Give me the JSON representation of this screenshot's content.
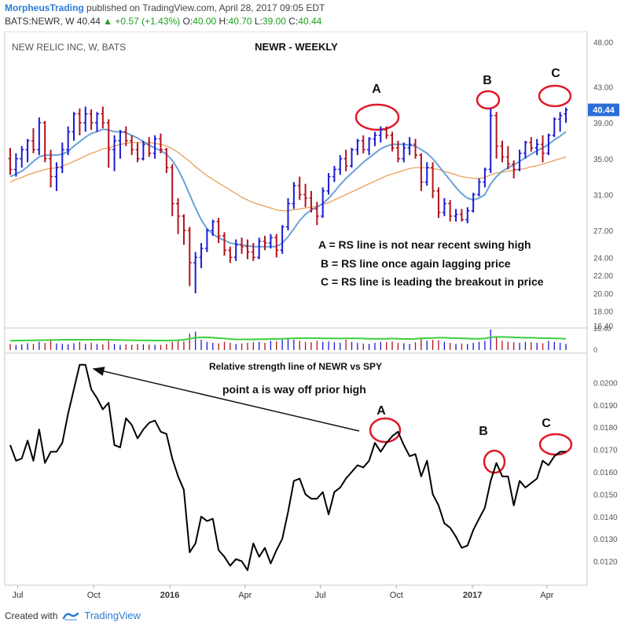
{
  "header": {
    "author": "MorpheusTrading",
    "published_text": "published on TradingView.com, April 28, 2017 09:05 EDT",
    "symbol": "BATS:NEWR, W",
    "last": "40.44",
    "change": "+0.57 (+1.43%)",
    "o_label": "O:",
    "o_value": "40.00",
    "h_label": "H:",
    "h_value": "40.70",
    "l_label": "L:",
    "l_value": "39.00",
    "c_label": "C:",
    "c_value": "40.44"
  },
  "footer": {
    "created_with": "Created with",
    "brand": "TradingView"
  },
  "colors": {
    "up_bar": "#1a1ad6",
    "down_bar": "#b3121d",
    "ma_fast": "#6aa2d8",
    "ma_slow": "#e89a4a",
    "volume_ma": "#3ccf3c",
    "rs_line": "#000000",
    "annotation_circle": "#e0192a",
    "last_price_bg": "#2b6fd6"
  },
  "chart_data": [
    {
      "type": "line",
      "title": "NEWR - WEEKLY",
      "subtitle": "NEW RELIC INC, W, BATS",
      "ylim": [
        16.4,
        49.0
      ],
      "y_ticks": [
        "48.00",
        "43.00",
        "39.00",
        "35.00",
        "31.00",
        "27.00",
        "24.00",
        "22.00",
        "20.00",
        "18.00",
        "16.40"
      ],
      "last_price_label": "40.44",
      "x_ticks": [
        "Jul",
        "Oct",
        "2016",
        "Apr",
        "Jul",
        "Oct",
        "2017",
        "Apr"
      ],
      "x": [
        "2015-06-22",
        "2015-06-29",
        "2015-07-06",
        "2015-07-13",
        "2015-07-20",
        "2015-07-27",
        "2015-08-03",
        "2015-08-10",
        "2015-08-17",
        "2015-08-24",
        "2015-08-31",
        "2015-09-07",
        "2015-09-14",
        "2015-09-21",
        "2015-09-28",
        "2015-10-05",
        "2015-10-12",
        "2015-10-19",
        "2015-10-26",
        "2015-11-02",
        "2015-11-09",
        "2015-11-16",
        "2015-11-23",
        "2015-11-30",
        "2015-12-07",
        "2015-12-14",
        "2015-12-21",
        "2015-12-28",
        "2016-01-04",
        "2016-01-11",
        "2016-01-18",
        "2016-01-25",
        "2016-02-01",
        "2016-02-08",
        "2016-02-15",
        "2016-02-22",
        "2016-02-29",
        "2016-03-07",
        "2016-03-14",
        "2016-03-21",
        "2016-03-28",
        "2016-04-04",
        "2016-04-11",
        "2016-04-18",
        "2016-04-25",
        "2016-05-02",
        "2016-05-09",
        "2016-05-16",
        "2016-05-23",
        "2016-05-30",
        "2016-06-06",
        "2016-06-13",
        "2016-06-20",
        "2016-06-27",
        "2016-07-04",
        "2016-07-11",
        "2016-07-18",
        "2016-07-25",
        "2016-08-01",
        "2016-08-08",
        "2016-08-15",
        "2016-08-22",
        "2016-08-29",
        "2016-09-05",
        "2016-09-12",
        "2016-09-19",
        "2016-09-26",
        "2016-10-03",
        "2016-10-10",
        "2016-10-17",
        "2016-10-24",
        "2016-10-31",
        "2016-11-07",
        "2016-11-14",
        "2016-11-21",
        "2016-11-28",
        "2016-12-05",
        "2016-12-12",
        "2016-12-19",
        "2016-12-26",
        "2017-01-02",
        "2017-01-09",
        "2017-01-16",
        "2017-01-23",
        "2017-01-30",
        "2017-02-06",
        "2017-02-13",
        "2017-02-20",
        "2017-02-27",
        "2017-03-06",
        "2017-03-13",
        "2017-03-20",
        "2017-03-27",
        "2017-04-03",
        "2017-04-10",
        "2017-04-17",
        "2017-04-24"
      ],
      "ohlc": [
        [
          35.0,
          36.2,
          33.2,
          33.8
        ],
        [
          33.8,
          35.6,
          33.0,
          35.0
        ],
        [
          35.0,
          36.4,
          34.0,
          36.0
        ],
        [
          36.0,
          37.2,
          34.6,
          37.0
        ],
        [
          37.0,
          38.4,
          35.6,
          36.0
        ],
        [
          36.0,
          39.6,
          35.4,
          39.0
        ],
        [
          39.0,
          39.2,
          34.6,
          35.0
        ],
        [
          35.0,
          36.0,
          31.8,
          33.0
        ],
        [
          33.0,
          34.6,
          31.4,
          34.0
        ],
        [
          34.0,
          36.8,
          33.4,
          36.0
        ],
        [
          36.0,
          38.6,
          35.4,
          38.0
        ],
        [
          38.0,
          40.2,
          37.0,
          40.0
        ],
        [
          40.0,
          40.6,
          37.6,
          39.0
        ],
        [
          39.0,
          40.8,
          38.0,
          40.0
        ],
        [
          40.0,
          40.5,
          38.2,
          39.0
        ],
        [
          39.0,
          40.2,
          38.0,
          40.0
        ],
        [
          40.0,
          40.8,
          38.4,
          39.0
        ],
        [
          39.0,
          39.4,
          34.0,
          36.0
        ],
        [
          36.0,
          37.6,
          33.6,
          37.0
        ],
        [
          37.0,
          38.2,
          35.0,
          38.0
        ],
        [
          38.0,
          38.6,
          36.4,
          37.0
        ],
        [
          37.0,
          37.6,
          35.4,
          36.0
        ],
        [
          36.0,
          36.8,
          34.6,
          35.0
        ],
        [
          35.0,
          37.0,
          34.8,
          36.6
        ],
        [
          36.6,
          37.4,
          35.2,
          35.6
        ],
        [
          35.6,
          37.6,
          35.0,
          37.2
        ],
        [
          37.2,
          37.8,
          35.6,
          36.0
        ],
        [
          36.0,
          36.2,
          33.4,
          34.0
        ],
        [
          34.0,
          34.4,
          28.6,
          30.0
        ],
        [
          30.0,
          30.6,
          26.6,
          28.6
        ],
        [
          28.6,
          28.8,
          25.4,
          27.0
        ],
        [
          27.0,
          27.4,
          20.8,
          23.4
        ],
        [
          23.4,
          24.6,
          20.0,
          24.0
        ],
        [
          24.0,
          25.6,
          22.8,
          25.0
        ],
        [
          25.0,
          27.2,
          24.6,
          27.0
        ],
        [
          27.0,
          28.2,
          26.4,
          28.0
        ],
        [
          28.0,
          28.4,
          25.6,
          26.4
        ],
        [
          26.4,
          26.8,
          24.2,
          24.8
        ],
        [
          24.8,
          25.2,
          23.4,
          24.0
        ],
        [
          24.0,
          26.0,
          23.6,
          25.4
        ],
        [
          25.4,
          26.2,
          24.4,
          25.2
        ],
        [
          25.2,
          26.0,
          23.8,
          24.6
        ],
        [
          24.6,
          25.6,
          23.6,
          24.0
        ],
        [
          24.0,
          26.2,
          23.8,
          25.8
        ],
        [
          25.8,
          26.4,
          24.8,
          25.6
        ],
        [
          25.6,
          26.6,
          25.0,
          26.2
        ],
        [
          26.2,
          26.6,
          24.0,
          24.8
        ],
        [
          24.8,
          27.6,
          24.4,
          27.4
        ],
        [
          27.4,
          30.6,
          27.0,
          30.0
        ],
        [
          30.0,
          32.4,
          29.4,
          32.0
        ],
        [
          32.0,
          33.0,
          30.4,
          31.0
        ],
        [
          31.0,
          32.2,
          29.6,
          30.6
        ],
        [
          30.6,
          31.4,
          29.0,
          29.4
        ],
        [
          29.4,
          30.2,
          27.6,
          28.6
        ],
        [
          28.6,
          31.8,
          28.4,
          31.4
        ],
        [
          31.4,
          33.4,
          31.0,
          33.0
        ],
        [
          33.0,
          34.2,
          32.4,
          33.8
        ],
        [
          33.8,
          35.4,
          33.2,
          35.0
        ],
        [
          35.0,
          36.0,
          33.6,
          34.2
        ],
        [
          34.2,
          36.2,
          34.0,
          36.0
        ],
        [
          36.0,
          37.2,
          35.4,
          37.0
        ],
        [
          37.0,
          37.6,
          35.6,
          36.0
        ],
        [
          36.0,
          37.4,
          35.4,
          37.2
        ],
        [
          37.2,
          38.0,
          36.4,
          37.6
        ],
        [
          37.6,
          38.6,
          36.8,
          38.2
        ],
        [
          38.2,
          38.6,
          37.2,
          37.6
        ],
        [
          37.6,
          38.0,
          35.8,
          36.2
        ],
        [
          36.2,
          37.0,
          34.6,
          35.0
        ],
        [
          35.0,
          36.8,
          34.6,
          36.2
        ],
        [
          36.2,
          37.4,
          35.4,
          36.6
        ],
        [
          36.6,
          37.2,
          35.0,
          35.4
        ],
        [
          35.4,
          35.6,
          31.4,
          32.4
        ],
        [
          32.4,
          34.6,
          32.0,
          34.0
        ],
        [
          34.0,
          34.6,
          30.6,
          31.4
        ],
        [
          31.4,
          31.8,
          28.4,
          29.0
        ],
        [
          29.0,
          30.6,
          28.6,
          30.0
        ],
        [
          30.0,
          30.4,
          28.0,
          28.6
        ],
        [
          28.6,
          29.4,
          28.0,
          28.8
        ],
        [
          28.8,
          29.4,
          28.0,
          28.2
        ],
        [
          28.2,
          29.6,
          27.8,
          29.2
        ],
        [
          29.2,
          31.2,
          29.0,
          31.0
        ],
        [
          31.0,
          32.8,
          30.8,
          32.4
        ],
        [
          32.4,
          34.0,
          31.8,
          33.8
        ],
        [
          33.8,
          40.6,
          33.4,
          39.8
        ],
        [
          39.8,
          40.2,
          35.0,
          36.4
        ],
        [
          36.4,
          37.0,
          34.6,
          35.2
        ],
        [
          35.2,
          36.4,
          33.8,
          34.4
        ],
        [
          34.4,
          34.8,
          32.8,
          33.8
        ],
        [
          33.8,
          36.0,
          33.6,
          35.6
        ],
        [
          35.6,
          37.0,
          35.0,
          36.8
        ],
        [
          36.8,
          37.4,
          35.8,
          36.2
        ],
        [
          36.2,
          37.2,
          35.4,
          36.6
        ],
        [
          36.6,
          37.6,
          34.6,
          35.6
        ],
        [
          35.6,
          37.8,
          35.4,
          37.6
        ],
        [
          37.6,
          39.6,
          37.4,
          39.4
        ],
        [
          39.4,
          40.2,
          38.0,
          39.8
        ],
        [
          40.0,
          40.7,
          39.0,
          40.44
        ]
      ],
      "ma_fast": [
        33.0,
        33.3,
        33.6,
        34.1,
        34.7,
        35.2,
        35.4,
        35.4,
        35.4,
        35.5,
        35.8,
        36.4,
        36.9,
        37.4,
        37.8,
        38.0,
        38.3,
        38.2,
        38.0,
        38.0,
        37.9,
        37.6,
        37.3,
        36.9,
        36.5,
        36.2,
        35.9,
        35.5,
        34.8,
        33.8,
        32.5,
        31.0,
        29.5,
        28.2,
        27.2,
        26.6,
        26.2,
        25.9,
        25.6,
        25.5,
        25.4,
        25.3,
        25.2,
        25.2,
        25.2,
        25.2,
        25.2,
        25.6,
        26.3,
        27.2,
        28.1,
        28.8,
        29.3,
        29.6,
        30.0,
        30.6,
        31.3,
        32.1,
        32.8,
        33.4,
        34.0,
        34.6,
        35.1,
        35.6,
        36.1,
        36.4,
        36.6,
        36.6,
        36.6,
        36.5,
        36.4,
        36.0,
        35.6,
        35.0,
        34.2,
        33.4,
        32.6,
        31.8,
        31.1,
        30.6,
        30.4,
        30.6,
        31.0,
        32.2,
        33.0,
        33.6,
        34.0,
        34.3,
        34.7,
        35.1,
        35.5,
        35.9,
        36.2,
        36.6,
        37.1,
        37.5,
        38.0
      ],
      "ma_slow": [
        32.4,
        32.7,
        32.9,
        33.2,
        33.4,
        33.6,
        33.8,
        33.9,
        34.0,
        34.2,
        34.4,
        34.7,
        35.0,
        35.3,
        35.6,
        35.8,
        36.1,
        36.2,
        36.4,
        36.6,
        36.7,
        36.8,
        36.8,
        36.8,
        36.8,
        36.7,
        36.6,
        36.4,
        36.1,
        35.7,
        35.2,
        34.7,
        34.1,
        33.6,
        33.1,
        32.7,
        32.3,
        31.9,
        31.5,
        31.1,
        30.7,
        30.4,
        30.1,
        29.9,
        29.7,
        29.5,
        29.3,
        29.2,
        29.2,
        29.3,
        29.4,
        29.5,
        29.6,
        29.7,
        29.9,
        30.1,
        30.4,
        30.7,
        31.0,
        31.3,
        31.6,
        31.9,
        32.2,
        32.5,
        32.8,
        33.1,
        33.3,
        33.5,
        33.7,
        33.9,
        34.0,
        34.0,
        34.0,
        33.9,
        33.8,
        33.6,
        33.4,
        33.2,
        33.0,
        32.9,
        32.8,
        32.8,
        32.9,
        33.2,
        33.4,
        33.5,
        33.6,
        33.7,
        33.8,
        33.9,
        34.1,
        34.2,
        34.4,
        34.6,
        34.8,
        35.0,
        35.2
      ],
      "annotations": [
        "A",
        "B",
        "C"
      ],
      "notes": [
        "A = RS line is not near recent swing high",
        "B = RS line once again lagging price",
        "C = RS line is leading the breakout in price"
      ]
    },
    {
      "type": "bar",
      "title": "",
      "y_ticks": [
        "16.40",
        "0"
      ],
      "values": [
        0.3,
        0.25,
        0.28,
        0.33,
        0.3,
        0.4,
        0.35,
        0.45,
        0.32,
        0.3,
        0.28,
        0.33,
        0.4,
        0.3,
        0.35,
        0.3,
        0.28,
        0.45,
        0.3,
        0.25,
        0.28,
        0.26,
        0.3,
        0.28,
        0.27,
        0.26,
        0.25,
        0.3,
        0.4,
        0.45,
        0.42,
        0.8,
        0.9,
        0.5,
        0.4,
        0.35,
        0.32,
        0.4,
        0.35,
        0.3,
        0.32,
        0.35,
        0.38,
        0.4,
        0.35,
        0.45,
        0.42,
        0.5,
        0.55,
        0.5,
        0.45,
        0.4,
        0.38,
        0.45,
        0.4,
        0.42,
        0.38,
        0.35,
        0.5,
        0.4,
        0.35,
        0.32,
        0.3,
        0.35,
        0.4,
        0.38,
        0.42,
        0.35,
        0.33,
        0.3,
        0.38,
        0.6,
        0.45,
        0.5,
        0.48,
        0.4,
        0.35,
        0.3,
        0.32,
        0.3,
        0.35,
        0.4,
        0.45,
        1.0,
        0.6,
        0.45,
        0.4,
        0.38,
        0.35,
        0.4,
        0.38,
        0.35,
        0.33,
        0.45,
        0.4,
        0.35,
        0.3
      ],
      "volume_ma": [
        0.45,
        0.46,
        0.46,
        0.47,
        0.47,
        0.48,
        0.48,
        0.49,
        0.49,
        0.5,
        0.5,
        0.5,
        0.5,
        0.5,
        0.5,
        0.5,
        0.5,
        0.5,
        0.49,
        0.49,
        0.48,
        0.48,
        0.47,
        0.47,
        0.47,
        0.46,
        0.46,
        0.46,
        0.47,
        0.48,
        0.5,
        0.55,
        0.6,
        0.62,
        0.62,
        0.6,
        0.58,
        0.56,
        0.54,
        0.52,
        0.52,
        0.52,
        0.52,
        0.53,
        0.53,
        0.54,
        0.54,
        0.55,
        0.56,
        0.57,
        0.58,
        0.58,
        0.58,
        0.58,
        0.57,
        0.57,
        0.57,
        0.56,
        0.57,
        0.57,
        0.57,
        0.56,
        0.55,
        0.55,
        0.55,
        0.55,
        0.56,
        0.55,
        0.54,
        0.54,
        0.55,
        0.57,
        0.58,
        0.59,
        0.6,
        0.6,
        0.59,
        0.58,
        0.57,
        0.56,
        0.55,
        0.55,
        0.56,
        0.62,
        0.64,
        0.64,
        0.63,
        0.62,
        0.61,
        0.6,
        0.6,
        0.59,
        0.58,
        0.58,
        0.57,
        0.56,
        0.55
      ]
    },
    {
      "type": "line",
      "title": "Relative strength line of NEWR vs SPY",
      "ylim": [
        0.011,
        0.021
      ],
      "y_ticks": [
        "0.0200",
        "0.0190",
        "0.0180",
        "0.0170",
        "0.0160",
        "0.0150",
        "0.0140",
        "0.0130",
        "0.0120"
      ],
      "values": [
        0.0172,
        0.0165,
        0.0166,
        0.0174,
        0.0165,
        0.0179,
        0.0164,
        0.0169,
        0.0169,
        0.0173,
        0.0186,
        0.0197,
        0.0208,
        0.0208,
        0.0197,
        0.0193,
        0.0188,
        0.0191,
        0.0172,
        0.0171,
        0.0184,
        0.0181,
        0.0175,
        0.0179,
        0.0182,
        0.0183,
        0.0178,
        0.0177,
        0.0166,
        0.0158,
        0.0152,
        0.0124,
        0.0128,
        0.014,
        0.0138,
        0.0139,
        0.0125,
        0.0122,
        0.0118,
        0.0121,
        0.012,
        0.0116,
        0.0128,
        0.0122,
        0.0126,
        0.0119,
        0.0125,
        0.013,
        0.0142,
        0.0156,
        0.0157,
        0.015,
        0.0148,
        0.0148,
        0.0151,
        0.0141,
        0.0151,
        0.0153,
        0.0157,
        0.016,
        0.0163,
        0.0162,
        0.0165,
        0.0173,
        0.0169,
        0.0173,
        0.0176,
        0.0178,
        0.0172,
        0.0167,
        0.0168,
        0.0158,
        0.0165,
        0.015,
        0.0145,
        0.0137,
        0.0135,
        0.0131,
        0.0126,
        0.0127,
        0.0134,
        0.0139,
        0.0144,
        0.0156,
        0.0164,
        0.0158,
        0.0158,
        0.0145,
        0.0156,
        0.0153,
        0.0155,
        0.0157,
        0.0165,
        0.0163,
        0.0167,
        0.0169,
        0.0169
      ],
      "annotations": [
        "A",
        "B",
        "C"
      ],
      "arrow_label": "point a is way off prior high"
    }
  ]
}
